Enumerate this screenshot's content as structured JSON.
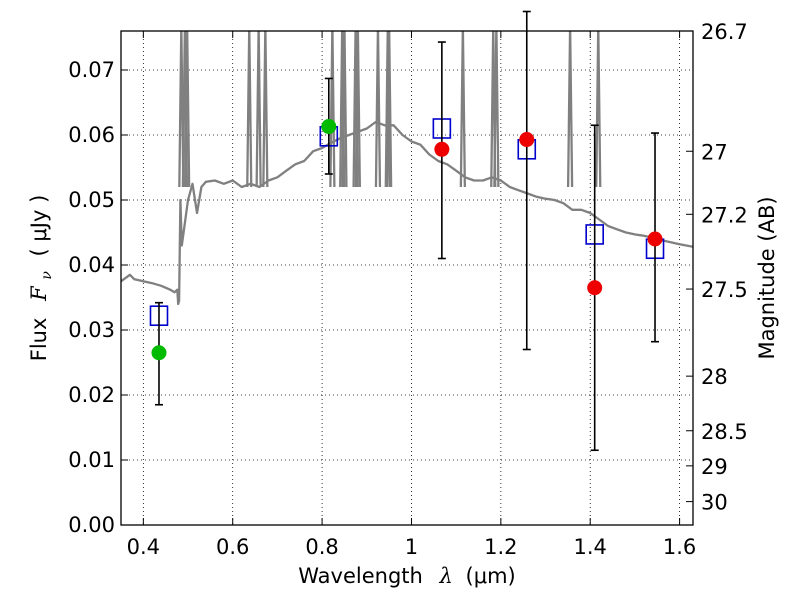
{
  "chart_data": {
    "type": "scatter",
    "xlabel_prefix": "Wavelength",
    "xlabel_math": "λ",
    "xlabel_unit": "(μm)",
    "ylabel_prefix": "Flux",
    "ylabel_math": "F",
    "ylabel_sub": "ν",
    "ylabel_unit": "( μJy )",
    "y2label": "Magnitude (AB)",
    "xlim": [
      0.35,
      1.63
    ],
    "ylim": [
      0.0,
      0.076
    ],
    "grid": true,
    "x_ticks": [
      0.4,
      0.6,
      0.8,
      1.0,
      1.2,
      1.4,
      1.6
    ],
    "x_tick_labels": [
      "0.4",
      "0.6",
      "0.8",
      "1",
      "1.2",
      "1.4",
      "1.6"
    ],
    "y_ticks": [
      0.0,
      0.01,
      0.02,
      0.03,
      0.04,
      0.05,
      0.06,
      0.07
    ],
    "y_tick_labels": [
      "0.00",
      "0.01",
      "0.02",
      "0.03",
      "0.04",
      "0.05",
      "0.06",
      "0.07"
    ],
    "magnitude_ticks": [
      {
        "label": "26.7",
        "flux": 0.076
      },
      {
        "label": "27",
        "flux": 0.0575
      },
      {
        "label": "27.2",
        "flux": 0.0478
      },
      {
        "label": "27.5",
        "flux": 0.0363
      },
      {
        "label": "28",
        "flux": 0.0229
      },
      {
        "label": "28.5",
        "flux": 0.0145
      },
      {
        "label": "29",
        "flux": 0.0091
      },
      {
        "label": "30",
        "flux": 0.0036
      }
    ],
    "series": [
      {
        "name": "model-sed",
        "kind": "line",
        "color": "#808080",
        "x": [
          0.35,
          0.37,
          0.38,
          0.4,
          0.42,
          0.44,
          0.46,
          0.47,
          0.476,
          0.478,
          0.48,
          0.483,
          0.486,
          0.49,
          0.5,
          0.51,
          0.52,
          0.53,
          0.54,
          0.56,
          0.58,
          0.6,
          0.62,
          0.64,
          0.66,
          0.68,
          0.7,
          0.72,
          0.74,
          0.76,
          0.78,
          0.8,
          0.82,
          0.84,
          0.86,
          0.88,
          0.9,
          0.92,
          0.94,
          0.96,
          0.98,
          1.0,
          1.02,
          1.04,
          1.06,
          1.08,
          1.1,
          1.12,
          1.14,
          1.16,
          1.18,
          1.2,
          1.22,
          1.24,
          1.26,
          1.28,
          1.3,
          1.32,
          1.34,
          1.36,
          1.38,
          1.4,
          1.42,
          1.44,
          1.46,
          1.48,
          1.5,
          1.52,
          1.54,
          1.56,
          1.58,
          1.6,
          1.63
        ],
        "y": [
          0.0375,
          0.0385,
          0.0378,
          0.0375,
          0.0372,
          0.0368,
          0.0362,
          0.0358,
          0.0362,
          0.034,
          0.0345,
          0.05,
          0.043,
          0.045,
          0.05,
          0.0525,
          0.048,
          0.052,
          0.0528,
          0.053,
          0.0525,
          0.053,
          0.052,
          0.0525,
          0.052,
          0.053,
          0.0535,
          0.0545,
          0.0555,
          0.056,
          0.0575,
          0.058,
          0.0588,
          0.0595,
          0.06,
          0.0605,
          0.061,
          0.062,
          0.0615,
          0.0615,
          0.06,
          0.059,
          0.0585,
          0.057,
          0.056,
          0.0555,
          0.0545,
          0.0535,
          0.053,
          0.053,
          0.0535,
          0.053,
          0.052,
          0.0515,
          0.051,
          0.0505,
          0.0502,
          0.05,
          0.0495,
          0.0485,
          0.0485,
          0.048,
          0.047,
          0.046,
          0.0455,
          0.045,
          0.0447,
          0.0445,
          0.0442,
          0.0438,
          0.0435,
          0.0432,
          0.0428
        ]
      },
      {
        "name": "model-photometry",
        "kind": "open-square",
        "color": "#0000cc",
        "x": [
          0.435,
          0.815,
          1.068,
          1.258,
          1.41,
          1.545
        ],
        "y": [
          0.0322,
          0.0598,
          0.061,
          0.0578,
          0.0447,
          0.0425
        ]
      },
      {
        "name": "observed-flux-green",
        "kind": "filled-circle",
        "color": "#00bb00",
        "x": [
          0.435,
          0.815
        ],
        "y": [
          0.0265,
          0.0613
        ],
        "yerr_low": [
          0.0185,
          0.054
        ],
        "yerr_high": [
          0.0342,
          0.0687
        ]
      },
      {
        "name": "observed-flux-red",
        "kind": "filled-circle",
        "color": "#ee0000",
        "x": [
          1.068,
          1.258,
          1.41,
          1.545
        ],
        "y": [
          0.0578,
          0.0593,
          0.0365,
          0.044
        ],
        "yerr_low": [
          0.041,
          0.027,
          0.0115,
          0.0282
        ],
        "yerr_high": [
          0.0743,
          0.079,
          0.0615,
          0.0603
        ]
      }
    ]
  }
}
